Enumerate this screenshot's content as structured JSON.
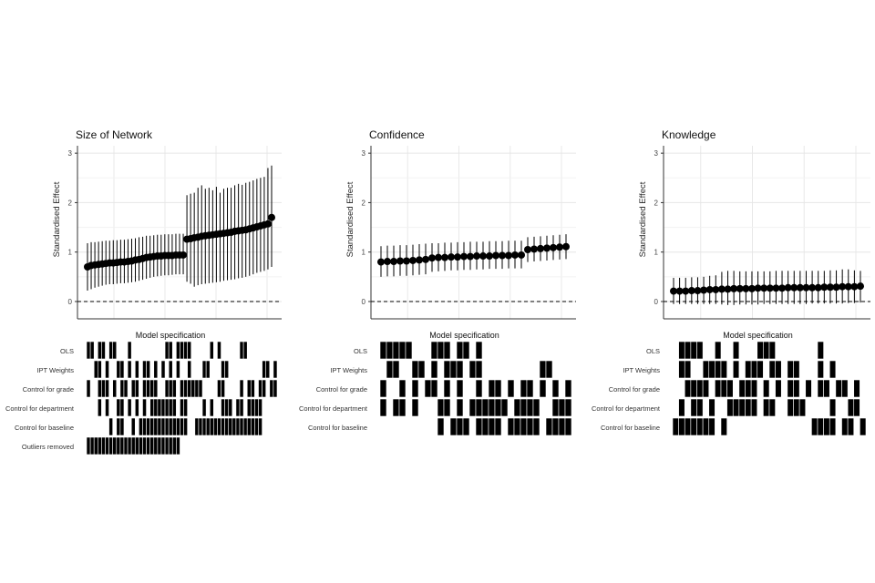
{
  "chart_data": [
    {
      "type": "scatter",
      "title": "Size of Network",
      "ylabel": "Standardised Effect",
      "spec_label": "Model specification",
      "ylim": [
        -0.35,
        3.15
      ],
      "yticks": [
        0,
        1,
        2,
        3
      ],
      "reference_line": 0,
      "grid": true,
      "estimates": [
        0.7,
        0.73,
        0.74,
        0.75,
        0.76,
        0.77,
        0.78,
        0.78,
        0.79,
        0.8,
        0.8,
        0.81,
        0.82,
        0.84,
        0.85,
        0.87,
        0.89,
        0.9,
        0.91,
        0.92,
        0.92,
        0.93,
        0.93,
        0.93,
        0.94,
        0.94,
        0.94,
        1.26,
        1.27,
        1.29,
        1.3,
        1.32,
        1.33,
        1.34,
        1.35,
        1.36,
        1.37,
        1.38,
        1.39,
        1.4,
        1.42,
        1.43,
        1.44,
        1.45,
        1.47,
        1.49,
        1.51,
        1.53,
        1.55,
        1.57,
        1.7
      ],
      "ci_lower": [
        0.22,
        0.25,
        0.28,
        0.3,
        0.32,
        0.34,
        0.35,
        0.35,
        0.36,
        0.37,
        0.37,
        0.38,
        0.39,
        0.4,
        0.42,
        0.44,
        0.46,
        0.48,
        0.5,
        0.51,
        0.52,
        0.53,
        0.53,
        0.54,
        0.55,
        0.55,
        0.55,
        0.4,
        0.36,
        0.3,
        0.33,
        0.35,
        0.36,
        0.37,
        0.38,
        0.39,
        0.4,
        0.42,
        0.43,
        0.44,
        0.45,
        0.47,
        0.48,
        0.5,
        0.52,
        0.55,
        0.58,
        0.6,
        0.62,
        0.65,
        0.7
      ],
      "ci_upper": [
        1.18,
        1.2,
        1.2,
        1.21,
        1.22,
        1.23,
        1.23,
        1.24,
        1.24,
        1.25,
        1.25,
        1.26,
        1.27,
        1.28,
        1.3,
        1.31,
        1.33,
        1.33,
        1.34,
        1.35,
        1.35,
        1.36,
        1.36,
        1.36,
        1.37,
        1.37,
        1.37,
        2.15,
        2.18,
        2.2,
        2.3,
        2.35,
        2.28,
        2.3,
        2.25,
        2.32,
        2.2,
        2.28,
        2.3,
        2.3,
        2.35,
        2.38,
        2.36,
        2.4,
        2.42,
        2.45,
        2.48,
        2.5,
        2.52,
        2.7,
        2.75
      ],
      "specs": [
        {
          "label": "OLS",
          "pattern": "110110110001000000000110111100000101000001100000000"
        },
        {
          "label": "IPT Weights",
          "pattern": "001101001101010110101010100100011000110000000001101"
        },
        {
          "label": "Control for grade",
          "pattern": "100111010110110111100111011111100001100001011011011"
        },
        {
          "label": "Control for department",
          "pattern": "000101001101010101111111011000010100111011011110000"
        },
        {
          "label": "Control for baseline",
          "pattern": "000000101100101111111111111001111111111111111110000"
        },
        {
          "label": "Outliers removed",
          "pattern": "111111111111111111111111100000000000000000000000000"
        }
      ]
    },
    {
      "type": "scatter",
      "title": "Confidence",
      "ylabel": "Standardised Effect",
      "spec_label": "Model specification",
      "ylim": [
        -0.35,
        3.15
      ],
      "yticks": [
        0,
        1,
        2,
        3
      ],
      "reference_line": 0,
      "grid": true,
      "estimates": [
        0.8,
        0.81,
        0.81,
        0.82,
        0.82,
        0.83,
        0.84,
        0.85,
        0.88,
        0.89,
        0.89,
        0.9,
        0.9,
        0.91,
        0.91,
        0.92,
        0.92,
        0.92,
        0.93,
        0.93,
        0.93,
        0.94,
        0.94,
        1.05,
        1.06,
        1.07,
        1.08,
        1.09,
        1.1,
        1.11
      ],
      "ci_lower": [
        0.5,
        0.51,
        0.51,
        0.52,
        0.52,
        0.53,
        0.54,
        0.55,
        0.6,
        0.61,
        0.62,
        0.63,
        0.63,
        0.64,
        0.64,
        0.65,
        0.65,
        0.66,
        0.66,
        0.66,
        0.67,
        0.67,
        0.67,
        0.8,
        0.81,
        0.82,
        0.83,
        0.84,
        0.85,
        0.86
      ],
      "ci_upper": [
        1.12,
        1.13,
        1.13,
        1.14,
        1.14,
        1.15,
        1.16,
        1.17,
        1.18,
        1.18,
        1.19,
        1.19,
        1.2,
        1.2,
        1.21,
        1.21,
        1.21,
        1.22,
        1.22,
        1.22,
        1.23,
        1.23,
        1.23,
        1.3,
        1.31,
        1.32,
        1.33,
        1.34,
        1.35,
        1.36
      ],
      "specs": [
        {
          "label": "OLS",
          "pattern": "111110001110110100000000000000"
        },
        {
          "label": "IPT Weights",
          "pattern": "011001101011101100000000011000"
        },
        {
          "label": "Control for grade",
          "pattern": "100101011010100101101011010101"
        },
        {
          "label": "Control for department",
          "pattern": "101101000110101111110111100111"
        },
        {
          "label": "Control for baseline",
          "pattern": "000000000101110111101111101111"
        }
      ]
    },
    {
      "type": "scatter",
      "title": "Knowledge",
      "ylabel": "Standardised Effect",
      "spec_label": "Model specification",
      "ylim": [
        -0.35,
        3.15
      ],
      "yticks": [
        0,
        1,
        2,
        3
      ],
      "reference_line": 0,
      "grid": true,
      "estimates": [
        0.21,
        0.21,
        0.21,
        0.22,
        0.22,
        0.23,
        0.24,
        0.24,
        0.25,
        0.25,
        0.26,
        0.26,
        0.26,
        0.26,
        0.27,
        0.27,
        0.27,
        0.27,
        0.27,
        0.28,
        0.28,
        0.28,
        0.28,
        0.28,
        0.28,
        0.29,
        0.29,
        0.29,
        0.3,
        0.3,
        0.3,
        0.31
      ],
      "ci_lower": [
        -0.05,
        -0.05,
        -0.05,
        -0.05,
        -0.05,
        -0.05,
        -0.05,
        -0.05,
        -0.06,
        -0.07,
        -0.07,
        -0.06,
        -0.06,
        -0.06,
        -0.06,
        -0.05,
        -0.05,
        -0.05,
        -0.05,
        -0.05,
        -0.05,
        -0.05,
        -0.05,
        -0.04,
        -0.04,
        -0.04,
        -0.04,
        -0.04,
        -0.04,
        -0.03,
        -0.03,
        -0.02
      ],
      "ci_upper": [
        0.48,
        0.48,
        0.48,
        0.49,
        0.49,
        0.5,
        0.52,
        0.53,
        0.6,
        0.62,
        0.62,
        0.61,
        0.61,
        0.61,
        0.61,
        0.61,
        0.61,
        0.62,
        0.62,
        0.62,
        0.62,
        0.62,
        0.62,
        0.62,
        0.62,
        0.62,
        0.63,
        0.63,
        0.65,
        0.65,
        0.63,
        0.62
      ],
      "specs": [
        {
          "label": "OLS",
          "pattern": "01111001001000111000000010000000"
        },
        {
          "label": "IPT Weights",
          "pattern": "01100111101011101101100010100000"
        },
        {
          "label": "Control for grade",
          "pattern": "00111101110111010101101011011010"
        },
        {
          "label": "Control for department",
          "pattern": "01011010011111011001110000100110"
        },
        {
          "label": "Control for baseline",
          "pattern": "11111110100000000000000111101101"
        }
      ]
    }
  ]
}
